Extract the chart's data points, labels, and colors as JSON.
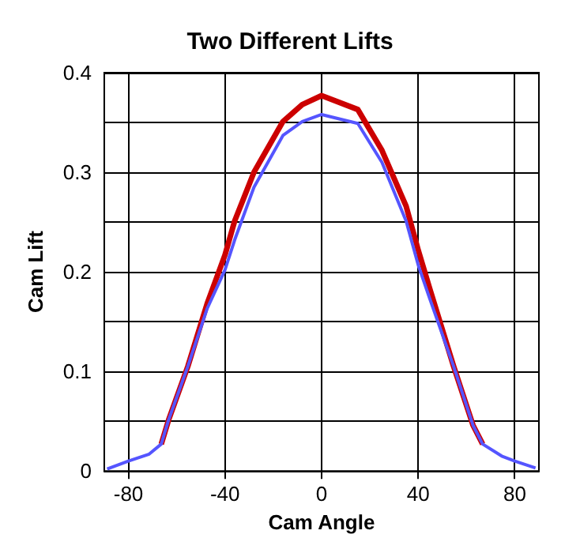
{
  "chart_data": {
    "type": "line",
    "title": "Two Different Lifts",
    "xlabel": "Cam Angle",
    "ylabel": "Cam Lift",
    "xlim": [
      -90,
      90
    ],
    "xticks": [
      -80,
      -40,
      0,
      40,
      80
    ],
    "ylim": [
      0,
      0.4
    ],
    "yticks": [
      0,
      {
        "value": 0.05,
        "label": null
      },
      0.1,
      {
        "value": 0.15,
        "label": null
      },
      0.2,
      {
        "value": 0.25,
        "label": null
      },
      0.3,
      {
        "value": 0.35,
        "label": null
      },
      0.4
    ],
    "grid": true,
    "marker": "none",
    "line_style": "solid",
    "series": [
      {
        "color": "#cc0000",
        "x": [
          -66.4,
          -63.4,
          -55.4,
          -47.4,
          -40,
          -36,
          -28,
          -16,
          -8,
          0,
          15,
          25,
          35,
          40,
          44.8,
          54.7,
          62.7,
          66.7
        ],
        "values": [
          0.027,
          0.051,
          0.105,
          0.168,
          0.217,
          0.251,
          0.3,
          0.351,
          0.368,
          0.377,
          0.363,
          0.322,
          0.266,
          0.222,
          0.183,
          0.105,
          0.046,
          0.027
        ]
      },
      {
        "color": "#5555ff",
        "x": [
          -88.8,
          -80,
          -71.4,
          -66.4,
          -63.4,
          -55.4,
          -47.4,
          -40,
          -36,
          -28,
          -16,
          -8,
          0,
          15,
          25,
          35,
          40,
          44.8,
          54.7,
          62.7,
          66.7,
          74.6,
          80,
          88.6
        ],
        "values": [
          0.002,
          0.01,
          0.017,
          0.027,
          0.051,
          0.105,
          0.163,
          0.202,
          0.232,
          0.285,
          0.337,
          0.351,
          0.358,
          0.349,
          0.31,
          0.251,
          0.207,
          0.173,
          0.105,
          0.046,
          0.027,
          0.015,
          0.01,
          0.003
        ]
      }
    ]
  }
}
